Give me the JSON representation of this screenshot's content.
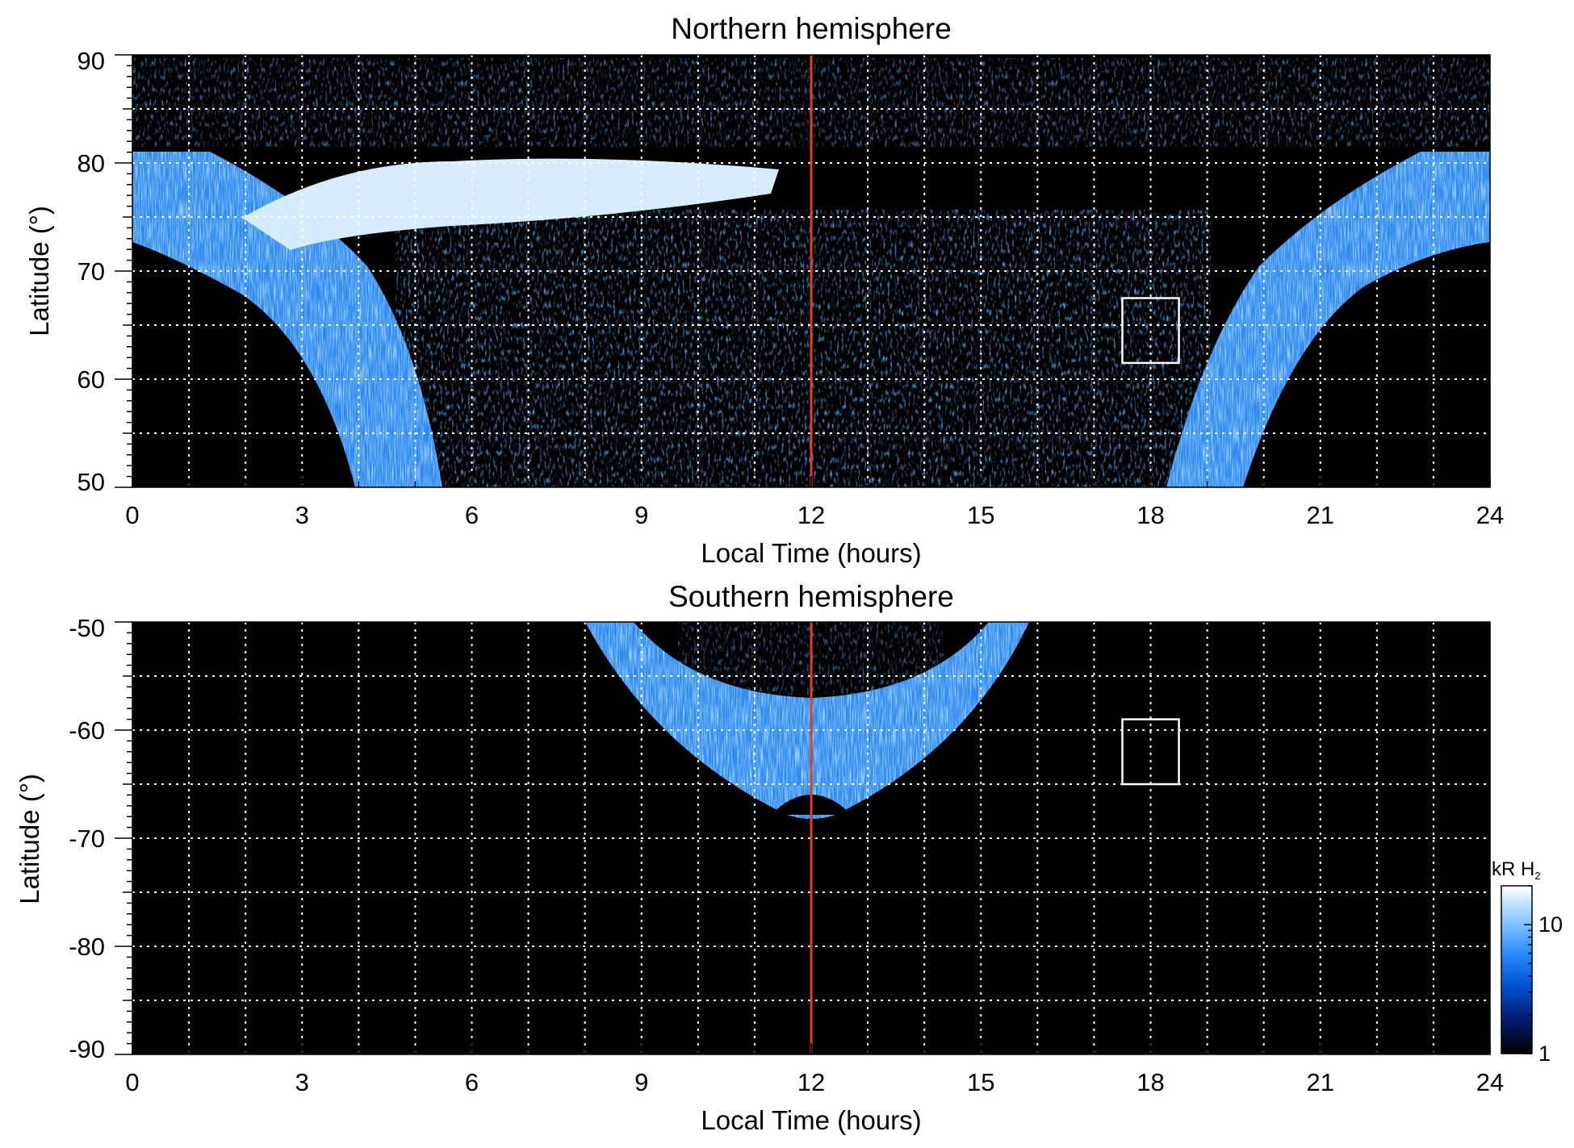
{
  "chart_data": [
    {
      "type": "heatmap",
      "title": "Northern hemisphere",
      "xlabel": "Local Time (hours)",
      "ylabel": "Latitude (°)",
      "xlim": [
        0,
        24
      ],
      "ylim": [
        50,
        90
      ],
      "x_ticks": [
        "0",
        "3",
        "6",
        "9",
        "12",
        "15",
        "18",
        "21",
        "24"
      ],
      "y_ticks": [
        "50",
        "60",
        "70",
        "80",
        "90"
      ],
      "grid": true,
      "reference_line": {
        "x": 12,
        "color": "#e0401a"
      },
      "box": {
        "x": [
          17.5,
          18.5
        ],
        "y": [
          61.5,
          67.5
        ]
      },
      "features": {
        "main_oval": {
          "lat_noon_inner": 74,
          "lat_noon_outer": 80,
          "lat_midnight_inner": 72,
          "lat_midnight_outer": 81
        },
        "bright_arc": {
          "x": [
            3,
            11.5
          ],
          "lat": [
            74,
            80
          ]
        }
      }
    },
    {
      "type": "heatmap",
      "title": "Southern hemisphere",
      "xlabel": "Local Time (hours)",
      "ylabel": "Latitude (°)",
      "xlim": [
        0,
        24
      ],
      "ylim": [
        -90,
        -50
      ],
      "x_ticks": [
        "0",
        "3",
        "6",
        "9",
        "12",
        "15",
        "18",
        "21",
        "24"
      ],
      "y_ticks": [
        "-50",
        "-60",
        "-70",
        "-80",
        "-90"
      ],
      "grid": true,
      "reference_line": {
        "x": 12,
        "color": "#e0401a"
      },
      "box": {
        "x": [
          17.5,
          18.5
        ],
        "y": [
          -65,
          -59
        ]
      },
      "features": {
        "main_oval": {
          "x": [
            8,
            16
          ],
          "lat_inner_noon": -57,
          "lat_outer_noon": -67
        }
      }
    }
  ],
  "colorbar": {
    "label": "kR H",
    "label_subscript": "2",
    "ticks": [
      "1",
      "10"
    ],
    "scale": "log",
    "range": [
      1,
      20
    ],
    "colors": [
      "#000000",
      "#001b6e",
      "#0050d0",
      "#2a8cff",
      "#8ecbff",
      "#ffffff"
    ]
  }
}
